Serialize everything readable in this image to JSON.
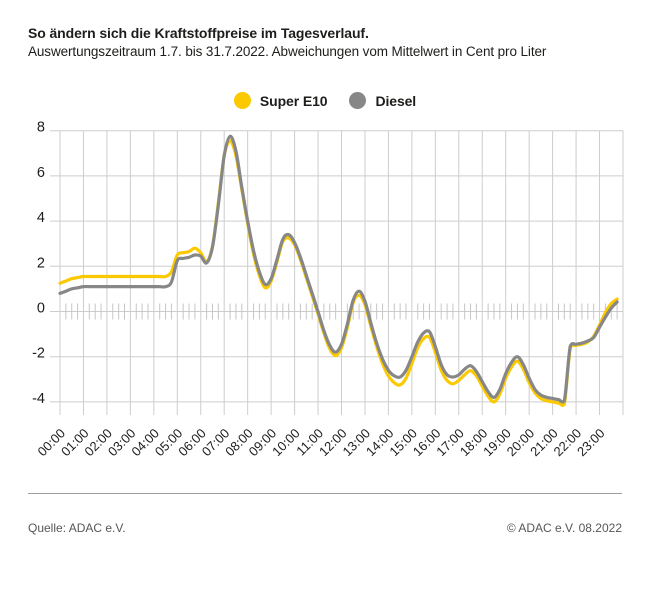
{
  "header": {
    "title": "So ändern sich die Kraftstoffpreise im Tagesverlauf.",
    "subtitle": "Auswertungszeitraum 1.7. bis 31.7.2022. Abweichungen vom Mittelwert in Cent pro Liter"
  },
  "legend": {
    "items": [
      {
        "label": "Super E10",
        "color": "#fbc900"
      },
      {
        "label": "Diesel",
        "color": "#878787"
      }
    ]
  },
  "chart_data": {
    "type": "line",
    "title": "Abweichungen vom Mittelwert in Cent pro Liter",
    "x_axis": "time of day",
    "x_start_hour": 0,
    "x_step_hours": 0.25,
    "x_tick_labels": [
      "00:00",
      "01:00",
      "02:00",
      "03:00",
      "04:00",
      "05:00",
      "06:00",
      "07:00",
      "08:00",
      "09:00",
      "10:00",
      "11:00",
      "12:00",
      "13:00",
      "14:00",
      "15:00",
      "16:00",
      "17:00",
      "18:00",
      "19:00",
      "20:00",
      "21:00",
      "22:00",
      "23:00"
    ],
    "y_ticks": [
      8,
      6,
      4,
      2,
      0,
      -2,
      -4
    ],
    "ylim": [
      -4.55,
      8
    ],
    "xlim_hours": [
      0,
      24
    ],
    "grid": true,
    "minor_ticks_minutes": 15,
    "legend_position": "top-center",
    "series": [
      {
        "name": "Super E10",
        "color": "#fbc900",
        "values": [
          1.25,
          1.35,
          1.45,
          1.5,
          1.55,
          1.55,
          1.55,
          1.55,
          1.55,
          1.55,
          1.55,
          1.55,
          1.55,
          1.55,
          1.55,
          1.55,
          1.55,
          1.55,
          1.55,
          1.75,
          2.5,
          2.6,
          2.65,
          2.8,
          2.6,
          2.2,
          2.9,
          4.8,
          6.9,
          7.55,
          6.9,
          5.4,
          3.9,
          2.55,
          1.6,
          1.05,
          1.35,
          2.2,
          3.1,
          3.25,
          2.95,
          2.3,
          1.5,
          0.7,
          -0.1,
          -0.95,
          -1.65,
          -1.95,
          -1.6,
          -0.7,
          0.4,
          0.72,
          0.3,
          -0.65,
          -1.55,
          -2.3,
          -2.85,
          -3.15,
          -3.25,
          -2.95,
          -2.3,
          -1.6,
          -1.2,
          -1.15,
          -1.8,
          -2.6,
          -3.05,
          -3.2,
          -3.05,
          -2.8,
          -2.62,
          -2.85,
          -3.3,
          -3.75,
          -4.0,
          -3.65,
          -2.95,
          -2.45,
          -2.2,
          -2.55,
          -3.15,
          -3.6,
          -3.85,
          -3.95,
          -4.0,
          -4.05,
          -4.1,
          -1.65,
          -1.5,
          -1.45,
          -1.35,
          -1.1,
          -0.6,
          -0.05,
          0.35,
          0.55
        ]
      },
      {
        "name": "Diesel",
        "color": "#878787",
        "values": [
          0.8,
          0.9,
          1.0,
          1.05,
          1.1,
          1.1,
          1.1,
          1.1,
          1.1,
          1.1,
          1.1,
          1.1,
          1.1,
          1.1,
          1.1,
          1.1,
          1.1,
          1.1,
          1.1,
          1.3,
          2.25,
          2.35,
          2.4,
          2.5,
          2.45,
          2.15,
          2.85,
          4.7,
          6.9,
          7.75,
          7.1,
          5.5,
          4.0,
          2.7,
          1.75,
          1.2,
          1.45,
          2.3,
          3.2,
          3.4,
          3.05,
          2.4,
          1.6,
          0.8,
          0.0,
          -0.85,
          -1.5,
          -1.8,
          -1.45,
          -0.55,
          0.5,
          0.9,
          0.45,
          -0.5,
          -1.4,
          -2.1,
          -2.6,
          -2.85,
          -2.9,
          -2.6,
          -2.0,
          -1.35,
          -0.95,
          -0.9,
          -1.55,
          -2.35,
          -2.8,
          -2.9,
          -2.8,
          -2.55,
          -2.4,
          -2.65,
          -3.1,
          -3.55,
          -3.8,
          -3.45,
          -2.75,
          -2.25,
          -2.0,
          -2.35,
          -2.95,
          -3.45,
          -3.7,
          -3.8,
          -3.85,
          -3.9,
          -3.95,
          -1.55,
          -1.45,
          -1.4,
          -1.3,
          -1.15,
          -0.7,
          -0.25,
          0.15,
          0.42
        ]
      }
    ]
  },
  "style": {
    "gridline_color": "#cdcdcd",
    "minor_tick_color": "#c6c6c6",
    "axis_text_color": "#1d1d1b",
    "line_width": 3.2
  },
  "footer": {
    "source": "Quelle: ADAC e.V.",
    "copyright": "© ADAC e.V. 08.2022"
  }
}
